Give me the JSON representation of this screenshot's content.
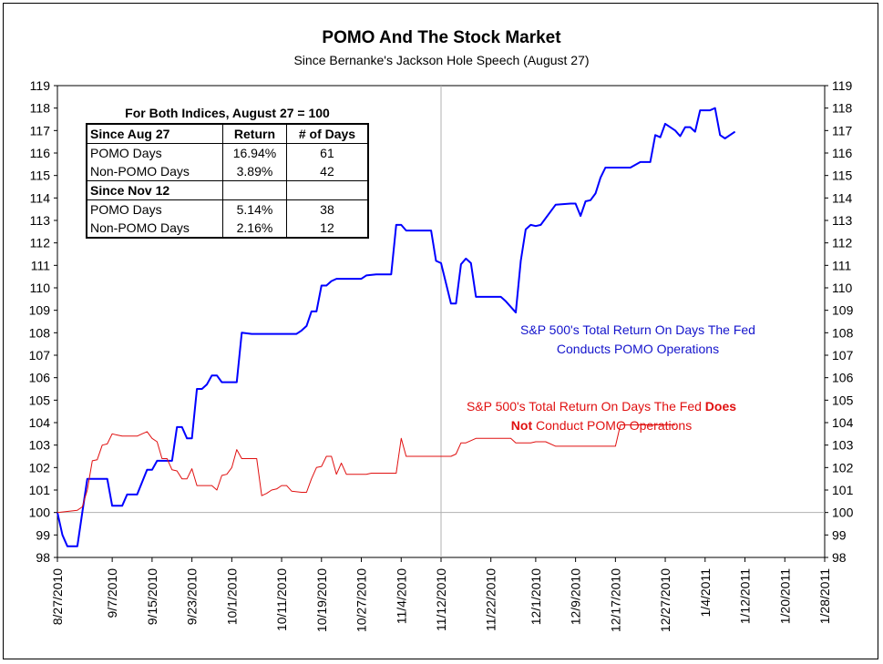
{
  "chart_data": {
    "type": "line",
    "title": "POMO And The Stock Market",
    "subtitle": "Since Bernanke's Jackson Hole Speech (August 27)",
    "ylim": [
      98,
      119
    ],
    "yticks": [
      98,
      99,
      100,
      101,
      102,
      103,
      104,
      105,
      106,
      107,
      108,
      109,
      110,
      111,
      112,
      113,
      114,
      115,
      116,
      117,
      118,
      119
    ],
    "xlim": [
      "2010-08-27",
      "2011-01-28"
    ],
    "xtick_labels": [
      "8/27/2010",
      "9/7/2010",
      "9/15/2010",
      "9/23/2010",
      "10/1/2010",
      "10/11/2010",
      "10/19/2010",
      "10/27/2010",
      "11/4/2010",
      "11/12/2010",
      "11/22/2010",
      "12/1/2010",
      "12/9/2010",
      "12/17/2010",
      "12/27/2010",
      "1/4/2011",
      "1/12/2011",
      "1/20/2011",
      "1/28/2011"
    ],
    "reference_lines": {
      "x": "2010-11-12",
      "y": 100
    },
    "grid": false,
    "series": [
      {
        "name": "S&P 500's Total Return On Days The Fed Conducts POMO Operations",
        "color": "#0000ff",
        "points": [
          [
            "2010-08-27",
            100.0
          ],
          [
            "2010-08-28",
            99.0
          ],
          [
            "2010-08-29",
            98.5
          ],
          [
            "2010-08-31",
            98.5
          ],
          [
            "2010-09-01",
            100.0
          ],
          [
            "2010-09-02",
            101.5
          ],
          [
            "2010-09-05",
            101.5
          ],
          [
            "2010-09-06",
            101.5
          ],
          [
            "2010-09-07",
            100.3
          ],
          [
            "2010-09-08",
            100.3
          ],
          [
            "2010-09-09",
            100.3
          ],
          [
            "2010-09-10",
            100.8
          ],
          [
            "2010-09-11",
            100.8
          ],
          [
            "2010-09-12",
            100.8
          ],
          [
            "2010-09-14",
            101.9
          ],
          [
            "2010-09-15",
            101.9
          ],
          [
            "2010-09-16",
            102.3
          ],
          [
            "2010-09-17",
            102.3
          ],
          [
            "2010-09-18",
            102.3
          ],
          [
            "2010-09-19",
            102.3
          ],
          [
            "2010-09-20",
            103.8
          ],
          [
            "2010-09-21",
            103.8
          ],
          [
            "2010-09-22",
            103.3
          ],
          [
            "2010-09-23",
            103.3
          ],
          [
            "2010-09-24",
            105.5
          ],
          [
            "2010-09-25",
            105.5
          ],
          [
            "2010-09-26",
            105.7
          ],
          [
            "2010-09-27",
            106.1
          ],
          [
            "2010-09-28",
            106.1
          ],
          [
            "2010-09-29",
            105.8
          ],
          [
            "2010-10-01",
            105.8
          ],
          [
            "2010-10-02",
            105.8
          ],
          [
            "2010-10-03",
            108.0
          ],
          [
            "2010-10-05",
            107.95
          ],
          [
            "2010-10-14",
            107.95
          ],
          [
            "2010-10-15",
            108.1
          ],
          [
            "2010-10-16",
            108.3
          ],
          [
            "2010-10-17",
            108.95
          ],
          [
            "2010-10-18",
            108.95
          ],
          [
            "2010-10-19",
            110.1
          ],
          [
            "2010-10-20",
            110.1
          ],
          [
            "2010-10-21",
            110.3
          ],
          [
            "2010-10-22",
            110.4
          ],
          [
            "2010-10-27",
            110.4
          ],
          [
            "2010-10-28",
            110.55
          ],
          [
            "2010-10-30",
            110.6
          ],
          [
            "2010-11-02",
            110.6
          ],
          [
            "2010-11-03",
            112.8
          ],
          [
            "2010-11-04",
            112.8
          ],
          [
            "2010-11-05",
            112.55
          ],
          [
            "2010-11-10",
            112.55
          ],
          [
            "2010-11-11",
            111.2
          ],
          [
            "2010-11-12",
            111.1
          ],
          [
            "2010-11-14",
            109.3
          ],
          [
            "2010-11-15",
            109.3
          ],
          [
            "2010-11-16",
            111.05
          ],
          [
            "2010-11-17",
            111.3
          ],
          [
            "2010-11-18",
            111.1
          ],
          [
            "2010-11-19",
            109.6
          ],
          [
            "2010-11-24",
            109.6
          ],
          [
            "2010-11-25",
            109.4
          ],
          [
            "2010-11-27",
            108.9
          ],
          [
            "2010-11-28",
            111.2
          ],
          [
            "2010-11-29",
            112.6
          ],
          [
            "2010-11-30",
            112.8
          ],
          [
            "2010-12-01",
            112.75
          ],
          [
            "2010-12-02",
            112.8
          ],
          [
            "2010-12-05",
            113.7
          ],
          [
            "2010-12-08",
            113.75
          ],
          [
            "2010-12-09",
            113.75
          ],
          [
            "2010-12-10",
            113.2
          ],
          [
            "2010-12-11",
            113.85
          ],
          [
            "2010-12-12",
            113.9
          ],
          [
            "2010-12-13",
            114.2
          ],
          [
            "2010-12-14",
            114.9
          ],
          [
            "2010-12-15",
            115.35
          ],
          [
            "2010-12-20",
            115.35
          ],
          [
            "2010-12-22",
            115.6
          ],
          [
            "2010-12-24",
            115.6
          ],
          [
            "2010-12-25",
            116.8
          ],
          [
            "2010-12-26",
            116.7
          ],
          [
            "2010-12-27",
            117.3
          ],
          [
            "2010-12-29",
            117.0
          ],
          [
            "2010-12-30",
            116.75
          ],
          [
            "2010-12-31",
            117.15
          ],
          [
            "2011-01-01",
            117.15
          ],
          [
            "2011-01-02",
            116.95
          ],
          [
            "2011-01-03",
            117.9
          ],
          [
            "2011-01-05",
            117.9
          ],
          [
            "2011-01-06",
            118.0
          ],
          [
            "2011-01-07",
            116.8
          ],
          [
            "2011-01-08",
            116.65
          ],
          [
            "2011-01-10",
            116.95
          ]
        ]
      },
      {
        "name": "S&P 500's Total Return On Days The Fed Does Not Conduct POMO Operations",
        "color": "#e01010",
        "points": [
          [
            "2010-08-27",
            100.0
          ],
          [
            "2010-08-31",
            100.1
          ],
          [
            "2010-09-01",
            100.25
          ],
          [
            "2010-09-02",
            101.0
          ],
          [
            "2010-09-03",
            102.3
          ],
          [
            "2010-09-04",
            102.35
          ],
          [
            "2010-09-05",
            103.0
          ],
          [
            "2010-09-06",
            103.05
          ],
          [
            "2010-09-07",
            103.5
          ],
          [
            "2010-09-08",
            103.45
          ],
          [
            "2010-09-09",
            103.4
          ],
          [
            "2010-09-12",
            103.4
          ],
          [
            "2010-09-13",
            103.5
          ],
          [
            "2010-09-14",
            103.6
          ],
          [
            "2010-09-15",
            103.3
          ],
          [
            "2010-09-16",
            103.15
          ],
          [
            "2010-09-17",
            102.4
          ],
          [
            "2010-09-18",
            102.4
          ],
          [
            "2010-09-19",
            101.9
          ],
          [
            "2010-09-20",
            101.85
          ],
          [
            "2010-09-21",
            101.5
          ],
          [
            "2010-09-22",
            101.5
          ],
          [
            "2010-09-23",
            101.95
          ],
          [
            "2010-09-24",
            101.2
          ],
          [
            "2010-09-27",
            101.2
          ],
          [
            "2010-09-28",
            101.0
          ],
          [
            "2010-09-29",
            101.65
          ],
          [
            "2010-09-30",
            101.7
          ],
          [
            "2010-10-01",
            102.0
          ],
          [
            "2010-10-02",
            102.8
          ],
          [
            "2010-10-03",
            102.4
          ],
          [
            "2010-10-06",
            102.4
          ],
          [
            "2010-10-07",
            100.75
          ],
          [
            "2010-10-08",
            100.85
          ],
          [
            "2010-10-09",
            101.0
          ],
          [
            "2010-10-10",
            101.05
          ],
          [
            "2010-10-11",
            101.2
          ],
          [
            "2010-10-12",
            101.2
          ],
          [
            "2010-10-13",
            100.95
          ],
          [
            "2010-10-15",
            100.9
          ],
          [
            "2010-10-16",
            100.9
          ],
          [
            "2010-10-17",
            101.5
          ],
          [
            "2010-10-18",
            102.0
          ],
          [
            "2010-10-19",
            102.05
          ],
          [
            "2010-10-20",
            102.5
          ],
          [
            "2010-10-21",
            102.5
          ],
          [
            "2010-10-22",
            101.7
          ],
          [
            "2010-10-23",
            102.2
          ],
          [
            "2010-10-24",
            101.7
          ],
          [
            "2010-10-28",
            101.7
          ],
          [
            "2010-10-29",
            101.75
          ],
          [
            "2010-11-03",
            101.75
          ],
          [
            "2010-11-04",
            103.3
          ],
          [
            "2010-11-05",
            102.5
          ],
          [
            "2010-11-14",
            102.5
          ],
          [
            "2010-11-15",
            102.6
          ],
          [
            "2010-11-16",
            103.1
          ],
          [
            "2010-11-17",
            103.1
          ],
          [
            "2010-11-19",
            103.3
          ],
          [
            "2010-11-26",
            103.3
          ],
          [
            "2010-11-27",
            103.1
          ],
          [
            "2010-11-30",
            103.1
          ],
          [
            "2010-12-01",
            103.15
          ],
          [
            "2010-12-03",
            103.15
          ],
          [
            "2010-12-05",
            102.95
          ],
          [
            "2010-12-06",
            102.95
          ],
          [
            "2010-12-08",
            102.95
          ],
          [
            "2010-12-17",
            102.95
          ],
          [
            "2010-12-18",
            103.9
          ],
          [
            "2010-12-29",
            103.9
          ]
        ]
      }
    ],
    "annotations": [
      {
        "name": "pomo-annotation",
        "text_line1": "S&P 500's Total Return On Days The Fed",
        "text_line2": "Conducts POMO Operations",
        "color": "#1414cc"
      },
      {
        "name": "nonpomo-annotation",
        "text_line1_plain": "S&P 500's Total Return On Days The Fed ",
        "text_line1_bold": "Does",
        "text_line2_bold": "Not",
        "text_line2_plain": " Conduct POMO Operations",
        "color": "#e01010"
      }
    ],
    "table": {
      "title": "For Both Indices, August 27 = 100",
      "columns": [
        "Since Aug 27",
        "Return",
        "# of Days"
      ],
      "rows1": [
        [
          "POMO Days",
          "16.94%",
          "61"
        ],
        [
          "Non-POMO Days",
          "3.89%",
          "42"
        ]
      ],
      "section2_label": "Since Nov 12",
      "rows2": [
        [
          "POMO Days",
          "5.14%",
          "38"
        ],
        [
          "Non-POMO Days",
          "2.16%",
          "12"
        ]
      ]
    }
  }
}
